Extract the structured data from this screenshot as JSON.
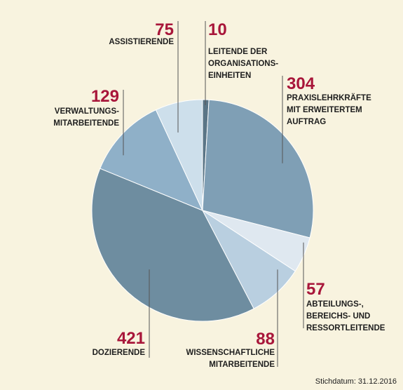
{
  "chart_data": {
    "type": "pie",
    "colors": {
      "value_text": "#a8163a",
      "leader_line": "#555555",
      "background": "#f8f3df"
    },
    "slices": [
      {
        "value": 10,
        "value_label": "10",
        "label": [
          "LEITENDE DER",
          "ORGANISATIONS-",
          "EINHEITEN"
        ],
        "color": "#5a7586"
      },
      {
        "value": 304,
        "value_label": "304",
        "label": [
          "PRAXISLEHRKRÄFTE",
          "MIT ERWEITERTEM",
          "AUFTRAG"
        ],
        "color": "#7f9fb5"
      },
      {
        "value": 57,
        "value_label": "57",
        "label": [
          "ABTEILUNGS-,",
          "BEREICHS- UND",
          "RESSORTLEITENDE"
        ],
        "color": "#dfe8f0"
      },
      {
        "value": 88,
        "value_label": "88",
        "label": [
          "WISSENSCHAFTLICHE",
          "MITARBEITENDE"
        ],
        "color": "#b9cfe0"
      },
      {
        "value": 421,
        "value_label": "421",
        "label": [
          "DOZIERENDE"
        ],
        "color": "#6e8da0"
      },
      {
        "value": 129,
        "value_label": "129",
        "label": [
          "VERWALTUNGS-",
          "MITARBEITENDE"
        ],
        "color": "#8fb0c8"
      },
      {
        "value": 75,
        "value_label": "75",
        "label": [
          "ASSISTIERENDE"
        ],
        "color": "#cddfeb"
      }
    ]
  },
  "footnote": "Stichdatum: 31.12.2016"
}
